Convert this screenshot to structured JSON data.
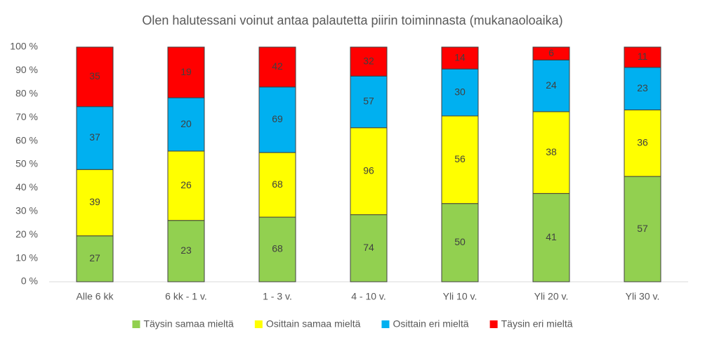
{
  "chart_data": {
    "type": "bar",
    "stacking": "percent",
    "title": "Olen halutessani voinut antaa palautetta piirin toiminnasta (mukanaoloaika)",
    "categories": [
      "Alle 6 kk",
      "6 kk - 1 v.",
      "1 - 3 v.",
      "4 - 10 v.",
      "Yli 10 v.",
      "Yli 20 v.",
      "Yli 30 v."
    ],
    "series": [
      {
        "name": "Täysin samaa mieltä",
        "color": "#92d050",
        "values": [
          27,
          23,
          68,
          74,
          50,
          41,
          57
        ]
      },
      {
        "name": "Osittain samaa mieltä",
        "color": "#ffff00",
        "values": [
          39,
          26,
          68,
          96,
          56,
          38,
          36
        ]
      },
      {
        "name": "Osittain eri mieltä",
        "color": "#00b0f0",
        "values": [
          37,
          20,
          69,
          57,
          30,
          24,
          23
        ]
      },
      {
        "name": "Täysin eri mieltä",
        "color": "#ff0000",
        "values": [
          35,
          19,
          42,
          32,
          14,
          6,
          11
        ]
      }
    ],
    "ylim": [
      0,
      100
    ],
    "yticks": [
      {
        "value": 0,
        "label": "0 %"
      },
      {
        "value": 10,
        "label": "10 %"
      },
      {
        "value": 20,
        "label": "20 %"
      },
      {
        "value": 30,
        "label": "30 %"
      },
      {
        "value": 40,
        "label": "40 %"
      },
      {
        "value": 50,
        "label": "50 %"
      },
      {
        "value": 60,
        "label": "60 %"
      },
      {
        "value": 70,
        "label": "70 %"
      },
      {
        "value": 80,
        "label": "80 %"
      },
      {
        "value": 90,
        "label": "90 %"
      },
      {
        "value": 100,
        "label": "100 %"
      }
    ],
    "legend": "bottom"
  }
}
